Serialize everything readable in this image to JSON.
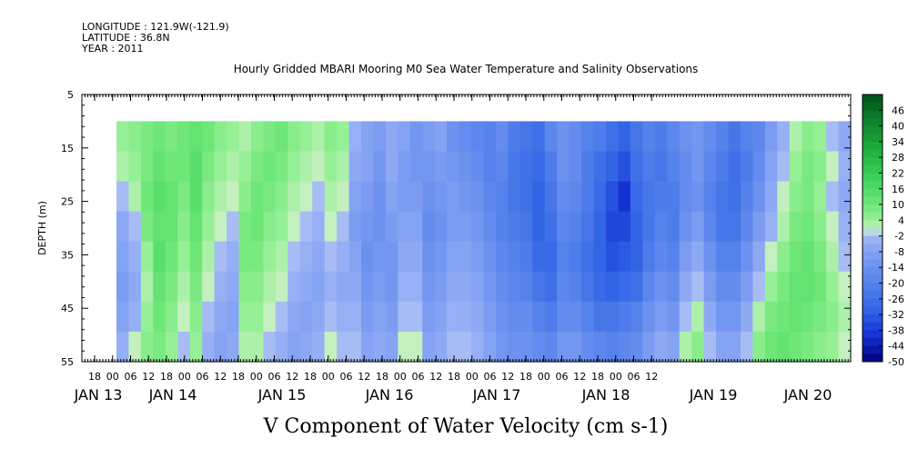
{
  "header": {
    "longitude": "LONGITUDE : 121.9W(-121.9)",
    "latitude": "LATITUDE : 36.8N",
    "year": "YEAR : 2011"
  },
  "chart_data": {
    "type": "heatmap",
    "title": "Hourly Gridded MBARI Mooring M0 Sea Water Temperature and Salinity Observations",
    "xlabel": "V Component of Water Velocity (cm s-1)",
    "ylabel": "DEPTH (m)",
    "ylim": [
      55,
      5
    ],
    "y_ticks": [
      5,
      15,
      25,
      35,
      45,
      55
    ],
    "x_hour_ticks": [
      "18",
      "00",
      "06",
      "12",
      "18",
      "00",
      "06",
      "12",
      "18",
      "00",
      "06",
      "12",
      "18",
      "00",
      "06",
      "12",
      "18",
      "00",
      "06",
      "12",
      "18",
      "00",
      "06",
      "12",
      "18",
      "00",
      "06",
      "12",
      "18",
      "00",
      "06",
      "12"
    ],
    "x_day_labels": [
      "JAN 13",
      "JAN 14",
      "JAN 15",
      "JAN 16",
      "JAN 17",
      "JAN 18",
      "JAN 19",
      "JAN 20"
    ],
    "colorbar": {
      "labels": [
        "46",
        "40",
        "34",
        "28",
        "22",
        "16",
        "10",
        "4",
        "-2",
        "-8",
        "-14",
        "-20",
        "-26",
        "-32",
        "-38",
        "-44",
        "-50"
      ],
      "range": [
        -50,
        52
      ]
    },
    "series": [
      {
        "values": [
          [
            4,
            6,
            8,
            10,
            8,
            10,
            12,
            10,
            6,
            4,
            2,
            6,
            8,
            10,
            6,
            4,
            2,
            6,
            4,
            -4,
            -8,
            -10,
            -6,
            -8,
            -12,
            -10,
            -8,
            -14,
            -16,
            -18,
            -20,
            -16,
            -22,
            -24,
            -26,
            -18,
            -14,
            -16,
            -20,
            -22,
            -26,
            -30,
            -24,
            -20,
            -22,
            -18,
            -14,
            -12,
            -16,
            -20,
            -24,
            -20,
            -18,
            -10,
            -4,
            2,
            6,
            4,
            -2,
            -6
          ],
          [
            2,
            4,
            8,
            12,
            10,
            10,
            14,
            8,
            4,
            2,
            4,
            8,
            10,
            8,
            4,
            2,
            0,
            4,
            2,
            -6,
            -8,
            -12,
            -6,
            -10,
            -12,
            -12,
            -10,
            -12,
            -14,
            -16,
            -20,
            -18,
            -24,
            -26,
            -28,
            -22,
            -14,
            -16,
            -22,
            -26,
            -30,
            -34,
            -26,
            -22,
            -24,
            -20,
            -16,
            -12,
            -18,
            -22,
            -26,
            -22,
            -16,
            -8,
            -2,
            4,
            8,
            6,
            0,
            -4
          ],
          [
            -2,
            2,
            10,
            14,
            12,
            8,
            14,
            6,
            2,
            0,
            6,
            10,
            8,
            6,
            2,
            0,
            -2,
            2,
            0,
            -8,
            -10,
            -14,
            -8,
            -10,
            -10,
            -14,
            -12,
            -10,
            -12,
            -14,
            -18,
            -20,
            -24,
            -26,
            -30,
            -24,
            -16,
            -18,
            -22,
            -28,
            -34,
            -40,
            -28,
            -24,
            -22,
            -22,
            -16,
            -14,
            -20,
            -24,
            -26,
            -20,
            -14,
            -6,
            0,
            6,
            8,
            4,
            -2,
            -6
          ],
          [
            -6,
            -2,
            8,
            12,
            12,
            6,
            12,
            4,
            0,
            -2,
            8,
            10,
            6,
            4,
            0,
            -2,
            -4,
            0,
            -2,
            -10,
            -12,
            -14,
            -10,
            -8,
            -8,
            -16,
            -14,
            -10,
            -10,
            -12,
            -16,
            -20,
            -22,
            -24,
            -30,
            -26,
            -18,
            -20,
            -24,
            -30,
            -36,
            -36,
            -30,
            -24,
            -20,
            -22,
            -14,
            -10,
            -18,
            -24,
            -24,
            -18,
            -10,
            -4,
            2,
            8,
            10,
            6,
            0,
            -4
          ],
          [
            -8,
            -4,
            4,
            14,
            10,
            4,
            10,
            2,
            -2,
            -4,
            8,
            8,
            4,
            2,
            -2,
            -4,
            -6,
            -2,
            -4,
            -8,
            -14,
            -12,
            -12,
            -6,
            -6,
            -14,
            -12,
            -8,
            -8,
            -10,
            -14,
            -18,
            -20,
            -22,
            -28,
            -28,
            -20,
            -22,
            -26,
            -30,
            -34,
            -32,
            -30,
            -22,
            -18,
            -20,
            -10,
            -6,
            -14,
            -20,
            -20,
            -14,
            -6,
            0,
            6,
            10,
            12,
            8,
            2,
            -2
          ],
          [
            -10,
            -6,
            2,
            12,
            8,
            2,
            8,
            0,
            -4,
            -6,
            6,
            6,
            2,
            0,
            -4,
            -6,
            -8,
            -4,
            -6,
            -6,
            -12,
            -10,
            -12,
            -4,
            -4,
            -12,
            -10,
            -6,
            -6,
            -8,
            -12,
            -16,
            -18,
            -20,
            -24,
            -26,
            -18,
            -20,
            -24,
            -28,
            -30,
            -28,
            -26,
            -18,
            -14,
            -16,
            -6,
            -2,
            -10,
            -16,
            -16,
            -10,
            -2,
            4,
            8,
            12,
            12,
            10,
            4,
            0
          ],
          [
            -8,
            -4,
            4,
            10,
            6,
            0,
            6,
            -2,
            -6,
            -8,
            4,
            4,
            0,
            -2,
            -6,
            -8,
            -6,
            -2,
            -4,
            -4,
            -10,
            -8,
            -10,
            -2,
            -2,
            -10,
            -8,
            -4,
            -4,
            -6,
            -10,
            -14,
            -16,
            -16,
            -20,
            -22,
            -16,
            -16,
            -20,
            -24,
            -24,
            -22,
            -20,
            -14,
            -10,
            -12,
            -2,
            2,
            -6,
            -12,
            -12,
            -6,
            2,
            8,
            10,
            12,
            10,
            8,
            6,
            2
          ],
          [
            -4,
            0,
            6,
            8,
            4,
            -2,
            4,
            -4,
            -8,
            -6,
            2,
            2,
            -2,
            -4,
            -8,
            -6,
            -4,
            0,
            -2,
            -2,
            -8,
            -6,
            -8,
            0,
            0,
            -8,
            -6,
            -2,
            -2,
            -4,
            -8,
            -12,
            -14,
            -14,
            -16,
            -18,
            -12,
            -12,
            -16,
            -18,
            -20,
            -18,
            -16,
            -10,
            -6,
            -8,
            2,
            6,
            -2,
            -8,
            -8,
            -2,
            6,
            10,
            12,
            10,
            8,
            6,
            4,
            0
          ]
        ]
      }
    ]
  }
}
